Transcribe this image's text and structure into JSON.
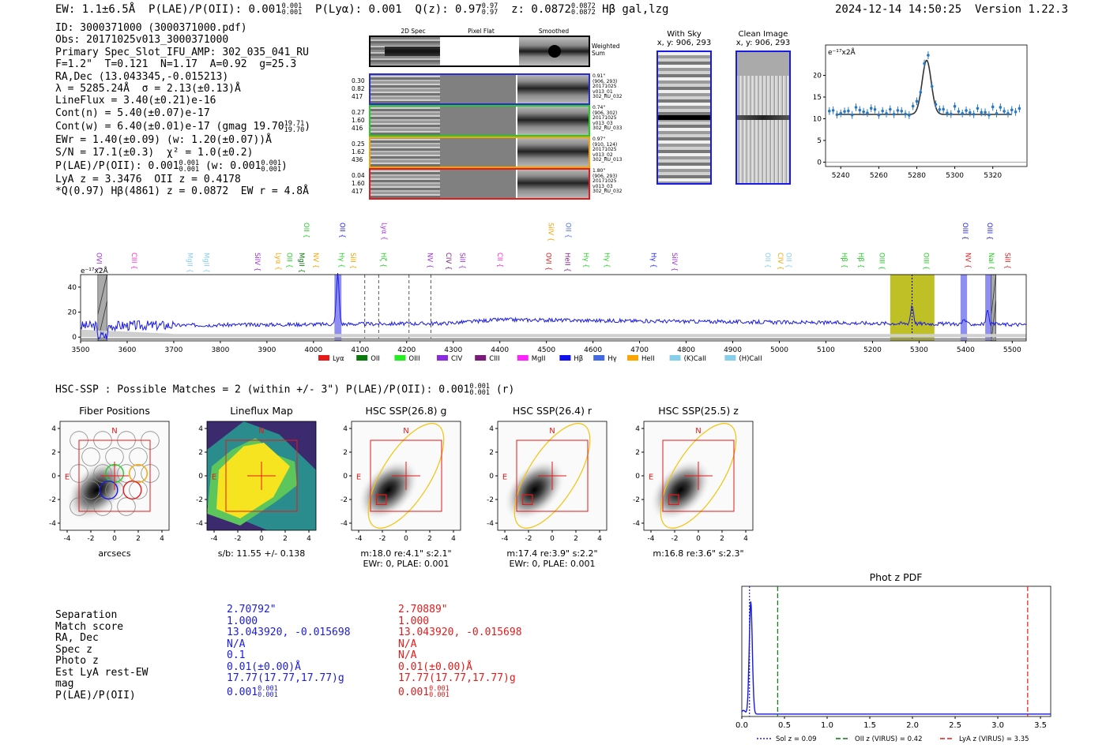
{
  "header": {
    "ew_text": "EW: 1.1±6.5Å",
    "plae_text": "P(LAE)/P(OII): 0.001",
    "plae_hi": "0.001",
    "plae_lo": "0.001",
    "plya_text": "P(Lyα): 0.001",
    "qz_text": "Q(z): 0.97",
    "qz_hi": "0.97",
    "qz_lo": "0.97",
    "z_text": "z: 0.0872",
    "z_hi": "0.0872",
    "z_lo": "0.0872",
    "z_tags": "Hβ  gal,lzg",
    "datetime": "2024-12-14 14:50:25",
    "version": "Version 1.22.3"
  },
  "info": {
    "id": "ID: 3000371000 (3000371000.pdf)",
    "obs": "Obs: 20171025v013_3000371000",
    "slot": "Primary Spec_Slot_IFU_AMP: 302_035_041_RU",
    "params": "F=1.2\"  T=0.121  N=1.17  A=0.92  g=25.3",
    "radec": "RA,Dec (13.043345,-0.015213)",
    "lambda": "λ = 5285.24Å  σ = 2.13(±0.13)Å",
    "lineflux": "LineFlux = 3.40(±0.21)e-16",
    "contn": "Cont(n) = 5.40(±0.07)e-17",
    "contw": "Cont(w) = 6.40(±0.01)e-17 (gmag 19.70",
    "contw_hi": "19.71",
    "contw_lo": "19.70",
    "ewr": "EWr = 1.40(±0.09) (w: 1.20(±0.07))Å",
    "sn": "S/N = 17.1(±0.3)  χ² = 1.0(±0.2)",
    "plae_a": "P(LAE)/P(OII): 0.001",
    "plae_a_hi": "0.001",
    "plae_a_lo": "0.001",
    "plae_b": "(w: 0.001",
    "plae_b_hi": "0.001",
    "plae_b_lo": "0.001",
    "lya_oii": "LyA z = 3.3476  OII z = 0.4178",
    "qline": "*Q(0.97) Hβ(4861) z = 0.0872  EW r = 4.8Å"
  },
  "cutouts": {
    "col_labels": [
      "2D Spec",
      "Pixel Flat",
      "Smoothed"
    ],
    "weighted_sum": [
      "Weighted",
      "Sum"
    ],
    "rows": [
      {
        "left": [
          "0.30",
          "0.82",
          "417"
        ],
        "right": [
          "0.91\"",
          "(906, 293)",
          "20171025",
          "v013_01",
          "302_RU_032"
        ],
        "color": "#2b2bd6"
      },
      {
        "left": [
          "0.27",
          "1.60",
          "416"
        ],
        "right": [
          "0.74\"",
          "(906, 302)",
          "20171025",
          "v013_03",
          "302_RU_033"
        ],
        "color": "#22cc22"
      },
      {
        "left": [
          "0.25",
          "1.62",
          "436"
        ],
        "right": [
          "0.97\"",
          "(910, 124)",
          "20171025",
          "v013_02",
          "302_RU_013"
        ],
        "color": "#f5a400"
      },
      {
        "left": [
          "0.04",
          "1.60",
          "417"
        ],
        "right": [
          "1.80\"",
          "(906, 293)",
          "20171025",
          "v013_03",
          "302_RU_032"
        ],
        "color": "#e61a1a"
      }
    ]
  },
  "sky": {
    "with_sky": "With Sky",
    "with_sky_coord": "x, y: 906, 293",
    "clean": "Clean Image",
    "clean_coord": "x, y: 906, 293"
  },
  "zoom_chart": {
    "unit": "e⁻¹⁷x2Å",
    "x_ticks": [
      5240,
      5260,
      5280,
      5300,
      5320
    ],
    "y_ticks": [
      0,
      5,
      10,
      15,
      20
    ],
    "xlim": [
      5232,
      5338
    ],
    "ylim": [
      -1,
      27
    ],
    "continuum": 11,
    "peak_x": 5285.2,
    "peak_amp": 12.5,
    "sigma": 2.4
  },
  "spectrum": {
    "unit": "e⁻¹⁷x2Å",
    "x_ticks": [
      3500,
      3600,
      3700,
      3800,
      3900,
      4000,
      4100,
      4200,
      4300,
      4400,
      4500,
      4600,
      4700,
      4800,
      4900,
      5000,
      5100,
      5200,
      5300,
      5400,
      5500
    ],
    "y_ticks": [
      0,
      20,
      40
    ],
    "xlim": [
      3500,
      5530
    ],
    "ylim": [
      -3,
      50
    ],
    "solution_x": 5285,
    "dashed_lines": [
      4110,
      4140,
      4205,
      4252
    ],
    "hatched": [
      [
        3537,
        3557
      ],
      [
        5455,
        5465
      ]
    ],
    "highlights": [
      [
        4045,
        4060
      ],
      [
        5238,
        5333
      ],
      [
        5389,
        5403
      ],
      [
        5442,
        5456
      ]
    ],
    "upper_labels": [
      {
        "text": "OII",
        "x": 3975,
        "color": "#22cc22"
      },
      {
        "text": "OII",
        "x": 4052,
        "color": "#1a1ae6"
      },
      {
        "text": "Lyα",
        "x": 4142,
        "color": "#9b30d9"
      },
      {
        "text": "SiIV",
        "x": 4500,
        "color": "#f5a400"
      },
      {
        "text": "OII",
        "x": 4537,
        "color": "#4a6ee8"
      },
      {
        "text": "OIII",
        "x": 5389,
        "color": "#1a1ae6"
      },
      {
        "text": "OIII",
        "x": 5442,
        "color": "#1a1ae6"
      }
    ],
    "lower_labels": [
      {
        "text": "OVI",
        "x": 3530,
        "color": "#9b30d9"
      },
      {
        "text": "CIII",
        "x": 3605,
        "color": "#ff22cc"
      },
      {
        "text": "MgII",
        "x": 3725,
        "color": "#87ceeb"
      },
      {
        "text": "MgII",
        "x": 3760,
        "color": "#87ceeb"
      },
      {
        "text": "SiIV",
        "x": 3870,
        "color": "#9b30d9"
      },
      {
        "text": "Lyα",
        "x": 3915,
        "color": "#f5a400"
      },
      {
        "text": "OII",
        "x": 3938,
        "color": "#22cc22"
      },
      {
        "text": "MgII",
        "x": 3965,
        "color": "#0a7a0a"
      },
      {
        "text": "NV",
        "x": 3995,
        "color": "#f5a400"
      },
      {
        "text": "Hγ",
        "x": 4050,
        "color": "#22cc22"
      },
      {
        "text": "SiII",
        "x": 4075,
        "color": "#f5a400"
      },
      {
        "text": "Hζ",
        "x": 4140,
        "color": "#22cc22"
      },
      {
        "text": "NV",
        "x": 4240,
        "color": "#9b30d9"
      },
      {
        "text": "CIV",
        "x": 4280,
        "color": "#7a1a7a"
      },
      {
        "text": "SiII",
        "x": 4310,
        "color": "#9b30d9"
      },
      {
        "text": "CII",
        "x": 4390,
        "color": "#ff22cc"
      },
      {
        "text": "OVI",
        "x": 4495,
        "color": "#e61a1a"
      },
      {
        "text": "HeII",
        "x": 4535,
        "color": "#7a1a7a"
      },
      {
        "text": "Hγ",
        "x": 4575,
        "color": "#22cc22"
      },
      {
        "text": "Hγ",
        "x": 4620,
        "color": "#22cc22"
      },
      {
        "text": "Hγ",
        "x": 4720,
        "color": "#1a1ae6"
      },
      {
        "text": "SiIV",
        "x": 4765,
        "color": "#9b30d9"
      },
      {
        "text": "OII",
        "x": 4965,
        "color": "#87ceeb"
      },
      {
        "text": "CIV",
        "x": 4992,
        "color": "#f5a400"
      },
      {
        "text": "OII",
        "x": 5010,
        "color": "#87ceeb"
      },
      {
        "text": "Hβ",
        "x": 5130,
        "color": "#22cc22"
      },
      {
        "text": "Hβ",
        "x": 5165,
        "color": "#22cc22"
      },
      {
        "text": "OIII",
        "x": 5210,
        "color": "#22cc22"
      },
      {
        "text": "OIII",
        "x": 5305,
        "color": "#22cc22"
      },
      {
        "text": "NV",
        "x": 5395,
        "color": "#e61a1a"
      },
      {
        "text": "NaI",
        "x": 5445,
        "color": "#22cc22"
      },
      {
        "text": "SiII",
        "x": 5480,
        "color": "#e61a1a"
      }
    ],
    "legend": [
      {
        "label": "Lyα",
        "color": "#e61a1a"
      },
      {
        "label": "OII",
        "color": "#0a7a0a"
      },
      {
        "label": "OIII",
        "color": "#22ee22"
      },
      {
        "label": "CIV",
        "color": "#8a2be2"
      },
      {
        "label": "CIII",
        "color": "#7a1a7a"
      },
      {
        "label": "MgII",
        "color": "#ff22ff"
      },
      {
        "label": "Hβ",
        "color": "#1010ee"
      },
      {
        "label": "Hγ",
        "color": "#4169e1"
      },
      {
        "label": "HeII",
        "color": "#ffa500"
      },
      {
        "label": "(K)CaII",
        "color": "#87ceeb"
      },
      {
        "label": "(H)CaII",
        "color": "#87ceeb"
      }
    ]
  },
  "hsc": {
    "title_text": "HSC-SSP : Possible Matches = 2 (within +/- 3\")  P(LAE)/P(OII): 0.001",
    "title_hi": "0.001",
    "title_lo": "0.001",
    "title_band": "(r)",
    "ticks": [
      -4,
      -2,
      0,
      2,
      4
    ],
    "panels": [
      {
        "title": "Fiber Positions",
        "captions": [
          "arcsecs"
        ]
      },
      {
        "title": "Lineflux Map",
        "captions": [
          "s/b: 11.55 +/- 0.138"
        ]
      },
      {
        "title": "HSC SSP(26.8) g",
        "captions": [
          "m:18.0  re:4.1\"  s:2.1\"",
          "EWr: 0, PLAE: 0.001"
        ]
      },
      {
        "title": "HSC SSP(26.4) r",
        "captions": [
          "m:17.4  re:3.9\"  s:2.2\"",
          "EWr: 0, PLAE: 0.001"
        ]
      },
      {
        "title": "HSC SSP(25.5) z",
        "captions": [
          "m:16.8  re:3.6\"  s:2.3\""
        ]
      }
    ],
    "north": "N",
    "east": "E"
  },
  "matches": {
    "labels": [
      "Separation",
      "Match score",
      "RA, Dec",
      "Spec z",
      "Photo z",
      "Est LyA rest-EW",
      "mag",
      "P(LAE)/P(OII)"
    ],
    "blue": [
      "2.70792\"",
      "1.000",
      "13.043920, -0.015698",
      "N/A",
      "0.1",
      "0.01(±0.00)Å",
      "17.77(17.77,17.77)g",
      "0.001"
    ],
    "blue_plae_hi": "0.001",
    "blue_plae_lo": "0.001",
    "red": [
      "2.70889\"",
      "1.000",
      "13.043920, -0.015698",
      "N/A",
      "N/A",
      "0.01(±0.00)Å",
      "17.77(17.77,17.77)g",
      "0.001"
    ],
    "red_plae_hi": "0.001",
    "red_plae_lo": "0.001"
  },
  "photz": {
    "title": "Phot z PDF",
    "x_ticks": [
      "0.0",
      "0.5",
      "1.0",
      "1.5",
      "2.0",
      "2.5",
      "3.0",
      "3.5"
    ],
    "xlim": [
      0,
      3.62
    ],
    "sol_z": 0.09,
    "oii_z": 0.42,
    "lya_z": 3.35,
    "pdf_peak": 0.105,
    "legend": [
      "Sol z = 0.09",
      "OII z (VIRUS) = 0.42",
      "LyA z (VIRUS) = 3.35"
    ]
  },
  "colors": {
    "blue": "#1a1ae6",
    "red": "#e61a1a",
    "olive": "#b4b400",
    "gold": "#f2c40c"
  }
}
